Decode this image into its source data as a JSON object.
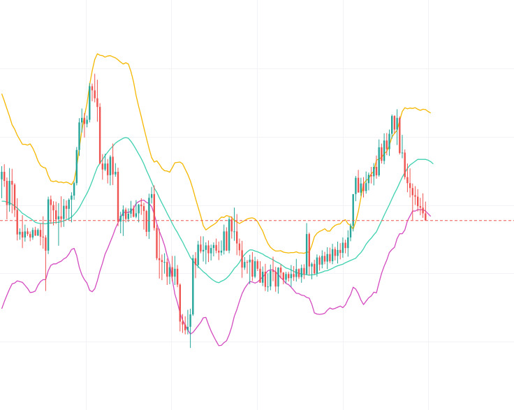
{
  "chart_data": {
    "type": "candlestick",
    "title": "",
    "xlabel": "",
    "ylabel": "",
    "ylim": [
      0,
      100
    ],
    "grid": true,
    "colors": {
      "up": "#26a69a",
      "down": "#ef5350",
      "upper_band": "#f5b700",
      "middle_band": "#3fd1b0",
      "lower_band": "#d44bc0",
      "price_line": "#ef5350",
      "grid": "#f1f3f6",
      "background": "#ffffff"
    },
    "current_price": 47.1,
    "candles": [
      [
        58.0,
        61.5,
        53.0,
        60.0
      ],
      [
        60.0,
        62.0,
        56.0,
        57.6
      ],
      [
        57.6,
        58.5,
        47.4,
        51.2
      ],
      [
        51.2,
        61.0,
        49.4,
        57.6
      ],
      [
        57.6,
        60.8,
        49.0,
        56.6
      ],
      [
        56.6,
        57.0,
        48.0,
        49.9
      ],
      [
        49.9,
        53.0,
        41.8,
        43.4
      ],
      [
        43.4,
        45.0,
        42.0,
        44.1
      ],
      [
        44.1,
        48.5,
        39.8,
        42.6
      ],
      [
        42.6,
        46.0,
        41.5,
        44.2
      ],
      [
        44.2,
        45.1,
        43.0,
        43.5
      ],
      [
        43.5,
        44.2,
        41.6,
        42.6
      ],
      [
        42.6,
        45.2,
        42.0,
        44.6
      ],
      [
        44.6,
        45.4,
        43.0,
        43.1
      ],
      [
        43.1,
        45.0,
        43.0,
        44.6
      ],
      [
        44.6,
        46.3,
        40.5,
        42.8
      ],
      [
        42.8,
        48.2,
        39.6,
        42.6
      ],
      [
        42.6,
        43.2,
        28.4,
        39.1
      ],
      [
        39.1,
        53.4,
        38.2,
        52.7
      ],
      [
        52.7,
        53.7,
        46.2,
        51.2
      ],
      [
        51.2,
        52.2,
        45.8,
        49.8
      ],
      [
        49.8,
        52.1,
        46.2,
        47.4
      ],
      [
        47.4,
        51.7,
        40.4,
        48.2
      ],
      [
        48.2,
        53.5,
        45.3,
        47.5
      ],
      [
        47.5,
        52.8,
        45.4,
        51.0
      ],
      [
        51.0,
        52.4,
        47.5,
        50.2
      ],
      [
        50.2,
        53.0,
        47.1,
        52.6
      ],
      [
        52.6,
        54.6,
        46.6,
        53.7
      ],
      [
        53.7,
        57.4,
        52.6,
        57.0
      ],
      [
        57.0,
        66.6,
        56.4,
        65.8
      ],
      [
        65.8,
        74.2,
        64.2,
        73.1
      ],
      [
        73.1,
        76.8,
        70.4,
        74.3
      ],
      [
        74.3,
        75.6,
        69.1,
        72.7
      ],
      [
        72.7,
        74.9,
        71.8,
        73.8
      ],
      [
        73.8,
        83.5,
        73.1,
        82.7
      ],
      [
        82.7,
        83.4,
        78.7,
        81.6
      ],
      [
        81.6,
        86.0,
        78.4,
        79.5
      ],
      [
        79.5,
        84.4,
        73.3,
        77.2
      ],
      [
        77.2,
        78.2,
        62.0,
        62.2
      ],
      [
        62.2,
        64.7,
        57.9,
        60.6
      ],
      [
        60.6,
        64.8,
        60.2,
        62.2
      ],
      [
        62.2,
        63.4,
        56.9,
        59.1
      ],
      [
        59.1,
        64.4,
        56.4,
        64.0
      ],
      [
        64.0,
        67.5,
        56.5,
        59.3
      ],
      [
        59.3,
        62.3,
        58.7,
        60.0
      ],
      [
        60.0,
        61.1,
        45.6,
        46.8
      ],
      [
        46.8,
        49.4,
        43.7,
        48.3
      ],
      [
        48.3,
        51.1,
        43.0,
        50.0
      ],
      [
        50.0,
        50.5,
        46.6,
        47.5
      ],
      [
        47.5,
        50.3,
        46.7,
        48.9
      ],
      [
        48.9,
        52.3,
        47.8,
        50.3
      ],
      [
        50.3,
        51.1,
        47.9,
        48.1
      ],
      [
        48.1,
        52.5,
        47.7,
        49.0
      ],
      [
        49.0,
        51.5,
        46.6,
        51.3
      ],
      [
        51.3,
        53.0,
        48.6,
        50.9
      ],
      [
        50.9,
        51.8,
        44.7,
        49.6
      ],
      [
        49.6,
        49.9,
        42.9,
        44.1
      ],
      [
        44.1,
        54.2,
        42.2,
        53.1
      ],
      [
        53.1,
        56.0,
        51.6,
        54.1
      ],
      [
        54.1,
        56.4,
        44.4,
        45.1
      ],
      [
        45.1,
        46.0,
        36.6,
        37.1
      ],
      [
        37.1,
        44.9,
        31.7,
        36.6
      ],
      [
        36.6,
        38.1,
        31.3,
        36.1
      ],
      [
        36.1,
        38.4,
        33.0,
        36.1
      ],
      [
        36.1,
        37.0,
        30.0,
        32.2
      ],
      [
        32.2,
        35.5,
        30.2,
        34.7
      ],
      [
        34.7,
        37.7,
        31.0,
        32.2
      ],
      [
        32.2,
        37.7,
        30.0,
        34.3
      ],
      [
        34.3,
        35.3,
        29.4,
        30.1
      ],
      [
        30.1,
        30.4,
        17.7,
        20.3
      ],
      [
        20.3,
        22.3,
        17.3,
        19.5
      ],
      [
        19.5,
        21.7,
        16.9,
        18.0
      ],
      [
        18.0,
        23.4,
        16.9,
        18.9
      ],
      [
        18.9,
        23.7,
        13.3,
        22.2
      ],
      [
        22.2,
        38.0,
        21.8,
        37.1
      ],
      [
        37.1,
        38.7,
        31.8,
        35.3
      ],
      [
        35.3,
        41.7,
        34.5,
        40.7
      ],
      [
        40.7,
        42.9,
        38.4,
        38.9
      ],
      [
        38.9,
        42.9,
        36.2,
        39.3
      ],
      [
        39.3,
        41.3,
        35.5,
        40.5
      ],
      [
        40.5,
        41.8,
        36.1,
        38.4
      ],
      [
        38.4,
        40.7,
        36.5,
        39.8
      ],
      [
        39.8,
        41.3,
        37.6,
        40.6
      ],
      [
        40.6,
        42.3,
        38.4,
        39.1
      ],
      [
        39.1,
        41.5,
        36.6,
        38.6
      ],
      [
        38.6,
        41.8,
        37.8,
        39.1
      ],
      [
        39.1,
        46.0,
        38.1,
        44.2
      ],
      [
        44.2,
        45.3,
        39.0,
        39.1
      ],
      [
        39.1,
        48.0,
        38.4,
        47.4
      ],
      [
        47.4,
        48.2,
        42.3,
        44.2
      ],
      [
        44.2,
        50.5,
        41.7,
        44.2
      ],
      [
        44.2,
        48.8,
        37.9,
        41.0
      ],
      [
        41.0,
        42.3,
        37.7,
        39.2
      ],
      [
        39.2,
        41.7,
        31.9,
        34.6
      ],
      [
        34.6,
        37.4,
        34.0,
        36.1
      ],
      [
        36.1,
        36.6,
        33.0,
        36.0
      ],
      [
        36.0,
        38.0,
        30.2,
        36.7
      ],
      [
        36.7,
        38.7,
        31.1,
        32.2
      ],
      [
        32.2,
        37.5,
        31.8,
        36.3
      ],
      [
        36.3,
        36.8,
        33.7,
        34.3
      ],
      [
        34.3,
        36.3,
        30.6,
        30.6
      ],
      [
        30.6,
        34.9,
        29.7,
        33.5
      ],
      [
        33.5,
        35.6,
        28.4,
        29.5
      ],
      [
        29.5,
        33.1,
        28.2,
        29.6
      ],
      [
        29.6,
        35.4,
        28.6,
        33.8
      ],
      [
        33.8,
        37.5,
        31.0,
        33.5
      ],
      [
        33.5,
        34.8,
        28.2,
        29.6
      ],
      [
        29.6,
        34.7,
        27.7,
        34.6
      ],
      [
        34.6,
        35.4,
        31.7,
        33.3
      ],
      [
        33.3,
        33.4,
        30.2,
        31.4
      ],
      [
        31.4,
        33.5,
        30.4,
        32.9
      ],
      [
        32.9,
        33.5,
        30.9,
        31.8
      ],
      [
        31.8,
        35.3,
        29.5,
        32.9
      ],
      [
        32.9,
        35.0,
        31.1,
        32.1
      ],
      [
        32.1,
        36.9,
        30.9,
        34.2
      ],
      [
        34.2,
        34.4,
        31.6,
        32.1
      ],
      [
        32.1,
        35.4,
        30.6,
        34.5
      ],
      [
        34.5,
        35.5,
        31.6,
        32.9
      ],
      [
        32.9,
        46.4,
        32.6,
        43.5
      ],
      [
        43.5,
        43.9,
        32.6,
        34.9
      ],
      [
        34.9,
        36.0,
        31.5,
        35.6
      ],
      [
        35.6,
        36.7,
        32.8,
        33.1
      ],
      [
        33.1,
        38.1,
        32.2,
        37.3
      ],
      [
        37.3,
        37.8,
        33.8,
        35.4
      ],
      [
        35.4,
        39.2,
        34.4,
        37.7
      ],
      [
        37.7,
        38.8,
        35.5,
        36.2
      ],
      [
        36.2,
        40.0,
        34.2,
        38.2
      ],
      [
        38.2,
        39.9,
        35.8,
        36.3
      ],
      [
        36.3,
        40.9,
        35.5,
        39.5
      ],
      [
        39.5,
        40.1,
        36.5,
        37.7
      ],
      [
        37.7,
        41.5,
        35.7,
        39.3
      ],
      [
        39.3,
        41.1,
        36.8,
        38.5
      ],
      [
        38.5,
        42.6,
        37.2,
        41.2
      ],
      [
        41.2,
        42.0,
        38.4,
        39.8
      ],
      [
        39.8,
        44.5,
        37.5,
        42.6
      ],
      [
        42.6,
        46.3,
        41.6,
        45.7
      ],
      [
        45.7,
        54.1,
        44.2,
        54.1
      ],
      [
        54.1,
        58.9,
        52.2,
        58.4
      ],
      [
        58.4,
        60.5,
        54.5,
        54.5
      ],
      [
        54.5,
        58.4,
        53.6,
        56.9
      ],
      [
        56.9,
        58.6,
        53.2,
        54.9
      ],
      [
        54.9,
        60.1,
        54.2,
        57.0
      ],
      [
        57.0,
        59.8,
        55.1,
        59.2
      ],
      [
        59.2,
        61.3,
        56.9,
        58.8
      ],
      [
        58.8,
        62.3,
        56.4,
        61.3
      ],
      [
        61.3,
        64.3,
        58.2,
        59.1
      ],
      [
        59.1,
        68.6,
        58.7,
        66.5
      ],
      [
        66.5,
        67.5,
        62.2,
        62.9
      ],
      [
        62.9,
        70.2,
        62.0,
        68.3
      ],
      [
        68.3,
        70.3,
        64.4,
        66.0
      ],
      [
        66.0,
        71.2,
        64.2,
        70.1
      ],
      [
        70.1,
        75.2,
        68.8,
        74.8
      ],
      [
        74.8,
        75.0,
        70.2,
        71.2
      ],
      [
        71.2,
        76.6,
        67.1,
        74.3
      ],
      [
        74.3,
        74.7,
        64.6,
        65.0
      ],
      [
        65.0,
        69.8,
        63.6,
        65.1
      ],
      [
        65.1,
        65.9,
        58.0,
        58.6
      ],
      [
        58.6,
        62.2,
        54.6,
        57.0
      ],
      [
        57.0,
        60.9,
        53.2,
        55.7
      ],
      [
        55.7,
        56.9,
        47.2,
        53.8
      ],
      [
        53.8,
        56.2,
        51.2,
        53.4
      ],
      [
        53.4,
        55.4,
        49.5,
        50.9
      ],
      [
        50.9,
        53.1,
        48.5,
        50.5
      ],
      [
        50.5,
        54.3,
        47.8,
        49.0
      ],
      [
        49.0,
        52.1,
        47.4,
        47.1
      ]
    ],
    "bollinger": {
      "upper": [
        80.7,
        78.8,
        76.7,
        74.7,
        72.5,
        71.3,
        69.7,
        68.5,
        67.3,
        67.3,
        67.1,
        67.4,
        66.3,
        64.8,
        62.9,
        61.7,
        61.2,
        61.0,
        59.0,
        57.6,
        57.4,
        57.6,
        57.2,
        57.3,
        57.1,
        57.3,
        57.0,
        56.6,
        57.7,
        61.2,
        66.3,
        70.9,
        74.8,
        78.1,
        83.0,
        86.8,
        89.8,
        91.3,
        90.9,
        90.8,
        90.4,
        90.7,
        90.8,
        90.5,
        90.2,
        89.7,
        89.1,
        88.6,
        88.9,
        88.6,
        86.6,
        83.9,
        80.2,
        77.3,
        74.6,
        71.7,
        68.9,
        66.2,
        63.8,
        62.6,
        62.9,
        62.0,
        60.9,
        60.3,
        60.2,
        59.9,
        61.1,
        62.4,
        62.5,
        62.6,
        62.1,
        60.7,
        59.3,
        57.6,
        55.4,
        52.9,
        50.6,
        48.3,
        45.7,
        44.6,
        45.1,
        45.6,
        46.0,
        46.5,
        47.3,
        48.0,
        47.9,
        48.4,
        48.2,
        47.9,
        47.1,
        46.7,
        46.3,
        46.7,
        47.1,
        47.5,
        47.7,
        47.8,
        47.5,
        46.8,
        45.5,
        44.3,
        42.5,
        41.0,
        40.0,
        39.4,
        39.0,
        39.0,
        39.1,
        38.7,
        38.6,
        38.5,
        38.6,
        38.6,
        38.8,
        38.5,
        38.5,
        38.4,
        38.7,
        38.7,
        40.5,
        42.8,
        43.7,
        44.2,
        44.5,
        44.9,
        44.3,
        44.3,
        45.2,
        45.8,
        46.1,
        46.2,
        47.0,
        47.3,
        46.2,
        45.8,
        44.8,
        46.8,
        49.5,
        53.2,
        56.8,
        57.7,
        58.2,
        59.5,
        60.1,
        63.1,
        63.4,
        63.8,
        64.8,
        65.4,
        67.0,
        69.2,
        70.2,
        71.0,
        73.6,
        76.0,
        77.0,
        76.7,
        76.9,
        76.8,
        77.0,
        76.6,
        76.3,
        76.6,
        76.5,
        76.0,
        75.6
      ],
      "middle": [
        52.2,
        52.2,
        52.0,
        51.8,
        51.4,
        50.9,
        50.4,
        49.7,
        49.0,
        48.6,
        48.1,
        47.7,
        47.2,
        46.6,
        46.4,
        46.3,
        46.3,
        46.2,
        46.4,
        46.4,
        46.5,
        46.6,
        46.6,
        46.8,
        47.0,
        47.3,
        47.6,
        48.0,
        48.7,
        49.5,
        50.5,
        51.8,
        53.1,
        54.3,
        55.8,
        57.5,
        59.4,
        61.2,
        62.3,
        63.3,
        64.3,
        65.2,
        66.1,
        66.8,
        67.6,
        68.1,
        68.5,
        68.9,
        69.1,
        68.9,
        68.1,
        67.1,
        65.9,
        64.7,
        63.5,
        62.1,
        60.4,
        58.9,
        57.3,
        55.7,
        54.6,
        53.1,
        51.7,
        50.4,
        49.0,
        47.7,
        46.3,
        45.0,
        43.9,
        42.6,
        41.4,
        40.0,
        38.7,
        37.3,
        36.4,
        35.6,
        34.9,
        34.2,
        33.5,
        33.0,
        32.3,
        31.7,
        31.2,
        30.8,
        30.6,
        31.0,
        31.3,
        31.8,
        32.5,
        33.4,
        34.4,
        35.1,
        36.0,
        37.2,
        38.1,
        38.8,
        39.3,
        39.3,
        39.0,
        38.8,
        38.5,
        38.2,
        37.7,
        37.4,
        37.0,
        36.7,
        36.2,
        35.9,
        35.5,
        35.0,
        34.5,
        34.3,
        34.0,
        33.6,
        33.3,
        33.1,
        32.9,
        32.8,
        32.7,
        32.6,
        32.7,
        32.7,
        33.0,
        33.2,
        33.4,
        33.7,
        33.8,
        34.1,
        34.4,
        34.8,
        35.1,
        35.3,
        35.5,
        35.9,
        36.2,
        36.5,
        36.8,
        37.1,
        37.9,
        38.6,
        39.6,
        40.8,
        41.7,
        42.4,
        43.3,
        44.1,
        45.6,
        47.0,
        48.5,
        49.9,
        51.3,
        52.8,
        54.3,
        55.6,
        57.1,
        58.6,
        59.8,
        60.9,
        61.8,
        62.3,
        62.8,
        63.3,
        63.3,
        63.3,
        63.3,
        63.1,
        62.7,
        62.1
      ],
      "lower": [
        23.7,
        25.6,
        27.3,
        28.9,
        30.3,
        30.5,
        31.1,
        30.9,
        30.7,
        29.9,
        29.1,
        28.0,
        28.1,
        28.4,
        29.9,
        30.9,
        31.4,
        31.4,
        33.8,
        35.2,
        35.6,
        35.6,
        36.0,
        36.3,
        36.9,
        37.3,
        38.2,
        39.4,
        39.7,
        37.8,
        34.7,
        32.7,
        31.4,
        30.5,
        28.6,
        28.2,
        29.0,
        31.1,
        33.7,
        35.8,
        38.2,
        39.7,
        41.4,
        43.1,
        45.0,
        46.5,
        47.9,
        49.2,
        49.3,
        49.2,
        49.6,
        50.3,
        51.6,
        52.1,
        52.4,
        52.5,
        51.9,
        51.6,
        50.8,
        48.8,
        46.3,
        44.2,
        42.5,
        40.5,
        37.8,
        35.5,
        31.5,
        27.6,
        25.3,
        22.6,
        20.7,
        19.3,
        18.1,
        17.0,
        17.4,
        18.3,
        19.2,
        20.1,
        21.3,
        21.4,
        19.5,
        17.8,
        16.4,
        15.1,
        13.9,
        14.0,
        14.7,
        15.2,
        16.8,
        18.9,
        21.7,
        23.5,
        25.7,
        27.7,
        29.1,
        30.1,
        30.9,
        30.8,
        30.5,
        30.8,
        31.5,
        32.1,
        32.9,
        33.8,
        34.0,
        34.0,
        33.4,
        32.8,
        31.9,
        31.3,
        30.4,
        30.1,
        29.4,
        28.6,
        27.8,
        27.7,
        27.3,
        27.2,
        26.7,
        26.5,
        24.9,
        22.6,
        22.3,
        22.2,
        22.3,
        22.5,
        23.3,
        23.9,
        23.6,
        23.8,
        24.1,
        24.4,
        24.0,
        24.7,
        26.2,
        27.4,
        29.4,
        28.9,
        27.7,
        26.0,
        24.8,
        25.7,
        26.6,
        27.1,
        28.1,
        27.9,
        30.6,
        33.1,
        35.0,
        36.6,
        38.6,
        39.4,
        40.0,
        42.3,
        43.6,
        43.6,
        44.6,
        47.0,
        48.3,
        49.6,
        49.6,
        50.0,
        49.9,
        50.0,
        49.6,
        48.9,
        48.2
      ]
    }
  }
}
